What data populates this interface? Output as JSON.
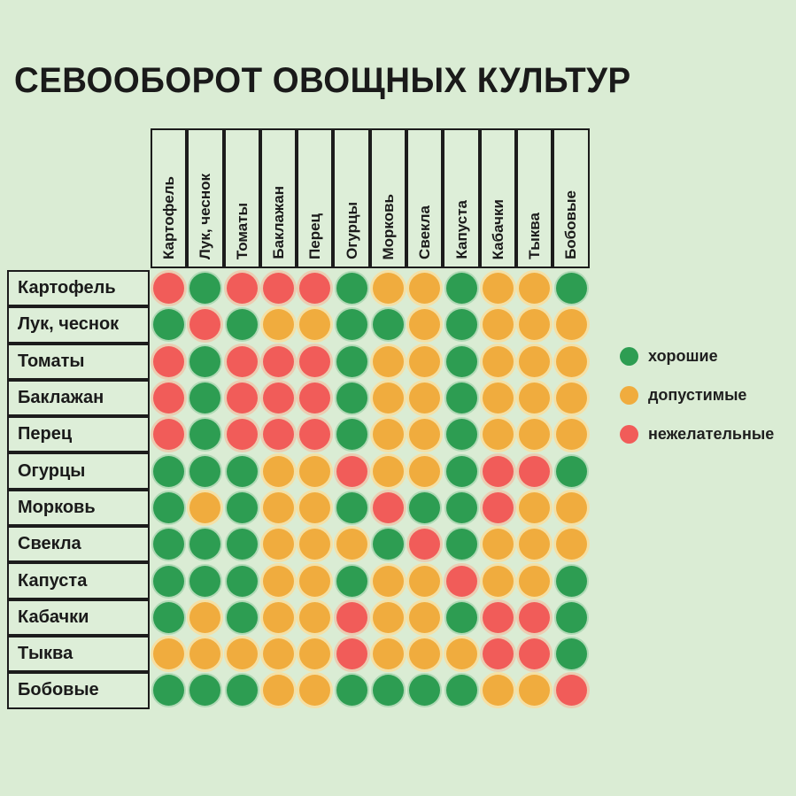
{
  "title": "СЕВООБОРОТ ОВОЩНЫХ КУЛЬТУР",
  "colors": {
    "background": "#daecd4",
    "good": "#2d9d52",
    "acceptable": "#f0ac3e",
    "bad": "#f15c59",
    "border": "#1c1c1c",
    "text": "#1a1a1a"
  },
  "legend": [
    {
      "swatch": "G",
      "label": "хорошие"
    },
    {
      "swatch": "Y",
      "label": "допустимые"
    },
    {
      "swatch": "R",
      "label": "нежелательные"
    }
  ],
  "chart_data": {
    "type": "heatmap",
    "title": "СЕВООБОРОТ ОВОЩНЫХ КУЛЬТУР",
    "legend": {
      "G": "хорошие",
      "Y": "допустимые",
      "R": "нежелательные"
    },
    "columns": [
      "Картофель",
      "Лук, чеснок",
      "Томаты",
      "Баклажан",
      "Перец",
      "Огурцы",
      "Морковь",
      "Свекла",
      "Капуста",
      "Кабачки",
      "Тыква",
      "Бобовые"
    ],
    "rows": [
      "Картофель",
      "Лук, чеснок",
      "Томаты",
      "Баклажан",
      "Перец",
      "Огурцы",
      "Морковь",
      "Свекла",
      "Капуста",
      "Кабачки",
      "Тыква",
      "Бобовые"
    ],
    "matrix": [
      [
        "R",
        "G",
        "R",
        "R",
        "R",
        "G",
        "Y",
        "Y",
        "G",
        "Y",
        "Y",
        "G"
      ],
      [
        "G",
        "R",
        "G",
        "Y",
        "Y",
        "G",
        "G",
        "Y",
        "G",
        "Y",
        "Y",
        "Y"
      ],
      [
        "R",
        "G",
        "R",
        "R",
        "R",
        "G",
        "Y",
        "Y",
        "G",
        "Y",
        "Y",
        "Y"
      ],
      [
        "R",
        "G",
        "R",
        "R",
        "R",
        "G",
        "Y",
        "Y",
        "G",
        "Y",
        "Y",
        "Y"
      ],
      [
        "R",
        "G",
        "R",
        "R",
        "R",
        "G",
        "Y",
        "Y",
        "G",
        "Y",
        "Y",
        "Y"
      ],
      [
        "G",
        "G",
        "G",
        "Y",
        "Y",
        "R",
        "Y",
        "Y",
        "G",
        "R",
        "R",
        "G"
      ],
      [
        "G",
        "Y",
        "G",
        "Y",
        "Y",
        "G",
        "R",
        "G",
        "G",
        "R",
        "Y",
        "Y"
      ],
      [
        "G",
        "G",
        "G",
        "Y",
        "Y",
        "Y",
        "G",
        "R",
        "G",
        "Y",
        "Y",
        "Y"
      ],
      [
        "G",
        "G",
        "G",
        "Y",
        "Y",
        "G",
        "Y",
        "Y",
        "R",
        "Y",
        "Y",
        "G"
      ],
      [
        "G",
        "Y",
        "G",
        "Y",
        "Y",
        "R",
        "Y",
        "Y",
        "G",
        "R",
        "R",
        "G"
      ],
      [
        "Y",
        "Y",
        "Y",
        "Y",
        "Y",
        "R",
        "Y",
        "Y",
        "Y",
        "R",
        "R",
        "G"
      ],
      [
        "G",
        "G",
        "G",
        "Y",
        "Y",
        "G",
        "G",
        "G",
        "G",
        "Y",
        "Y",
        "R"
      ]
    ]
  }
}
